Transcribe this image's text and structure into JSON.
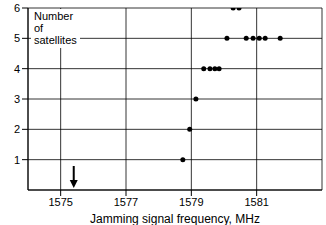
{
  "chart_data": {
    "type": "scatter",
    "x_label": "Jamming signal frequency, MHz",
    "y_label": "Number of satellites",
    "x": [
      1578.74,
      1578.95,
      1579.14,
      1579.38,
      1579.57,
      1579.72,
      1579.85,
      1580.09,
      1580.28,
      1580.46,
      1580.68,
      1580.89,
      1581.08,
      1581.26,
      1581.72
    ],
    "values": [
      1,
      2,
      3,
      4,
      4,
      4,
      4,
      5,
      6,
      6,
      5,
      5,
      5,
      5,
      5
    ],
    "color": "#000000",
    "xlim": [
      1574,
      1583
    ],
    "xticks": [
      1575,
      1577,
      1579,
      1581
    ],
    "ylim": [
      0,
      6
    ],
    "yticks": [
      1,
      2,
      3,
      4,
      5,
      6
    ],
    "grid": true,
    "arrow": 1575.4
  }
}
